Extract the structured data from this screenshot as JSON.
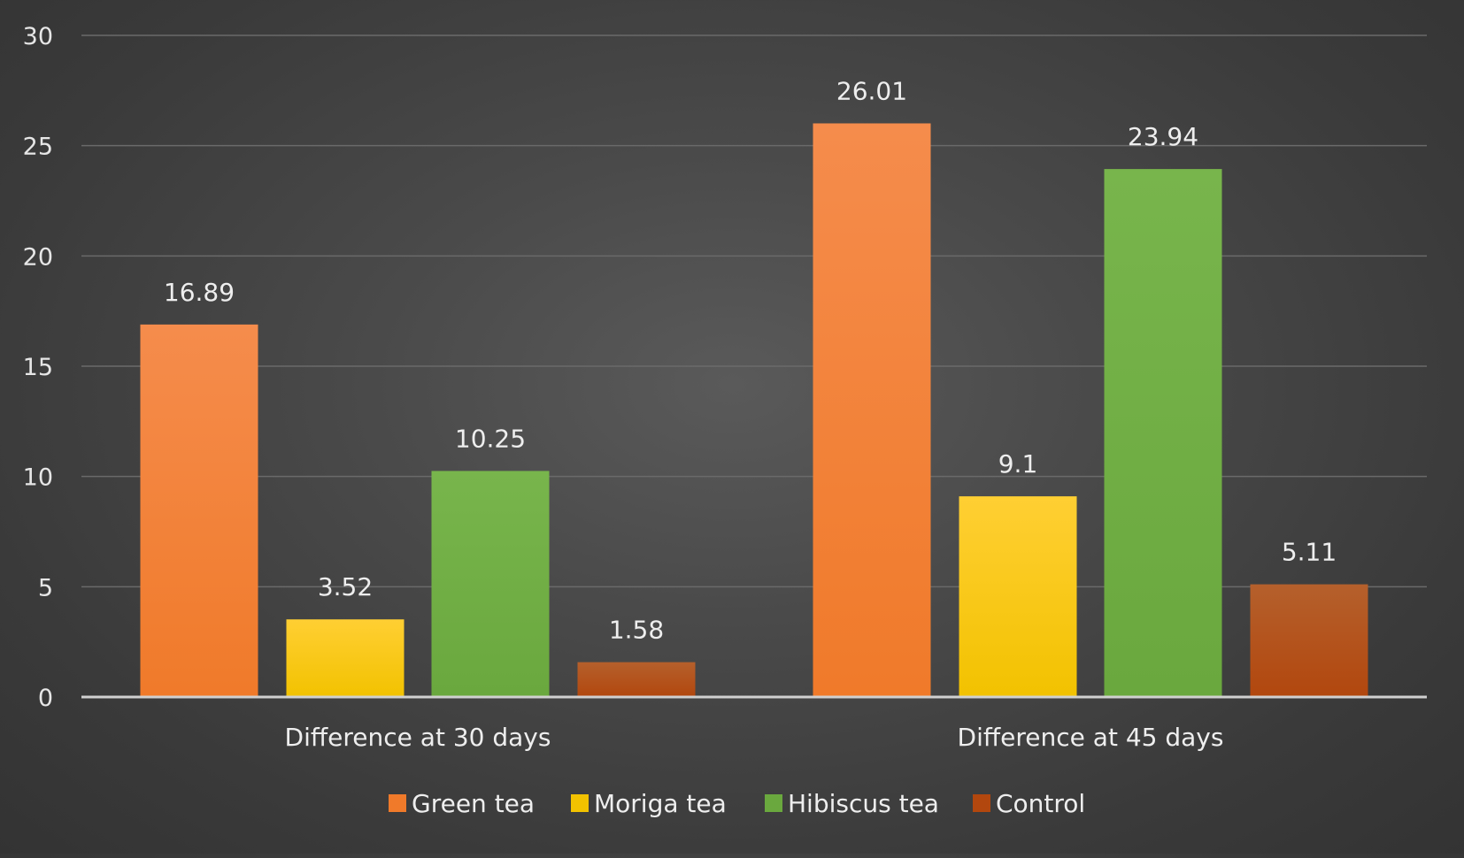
{
  "chart_data": {
    "type": "bar",
    "title": "",
    "xlabel": "",
    "ylabel": "",
    "categories": [
      "Difference at 30 days",
      "Difference at 45 days"
    ],
    "series": [
      {
        "name": "Green tea",
        "values": [
          16.89,
          26.01
        ],
        "color": "#f07a2a",
        "color_light": "#f58c4c"
      },
      {
        "name": "Moriga tea",
        "values": [
          3.52,
          9.1
        ],
        "color": "#f2c200",
        "color_light": "#ffcf33"
      },
      {
        "name": "Hibiscus tea",
        "values": [
          10.25,
          23.94
        ],
        "color": "#6aa83e",
        "color_light": "#78b54c"
      },
      {
        "name": "Control",
        "values": [
          1.58,
          5.11
        ],
        "color": "#b2470e",
        "color_light": "#b5602c"
      }
    ],
    "data_labels": [
      [
        "16.89",
        "26.01"
      ],
      [
        "3.52",
        "9.1"
      ],
      [
        "10.25",
        "23.94"
      ],
      [
        "1.58",
        "5.11"
      ]
    ],
    "ylim": [
      0,
      30
    ],
    "yticks": [
      0,
      5,
      10,
      15,
      20,
      25,
      30
    ],
    "grid": true,
    "legend_position": "bottom"
  }
}
